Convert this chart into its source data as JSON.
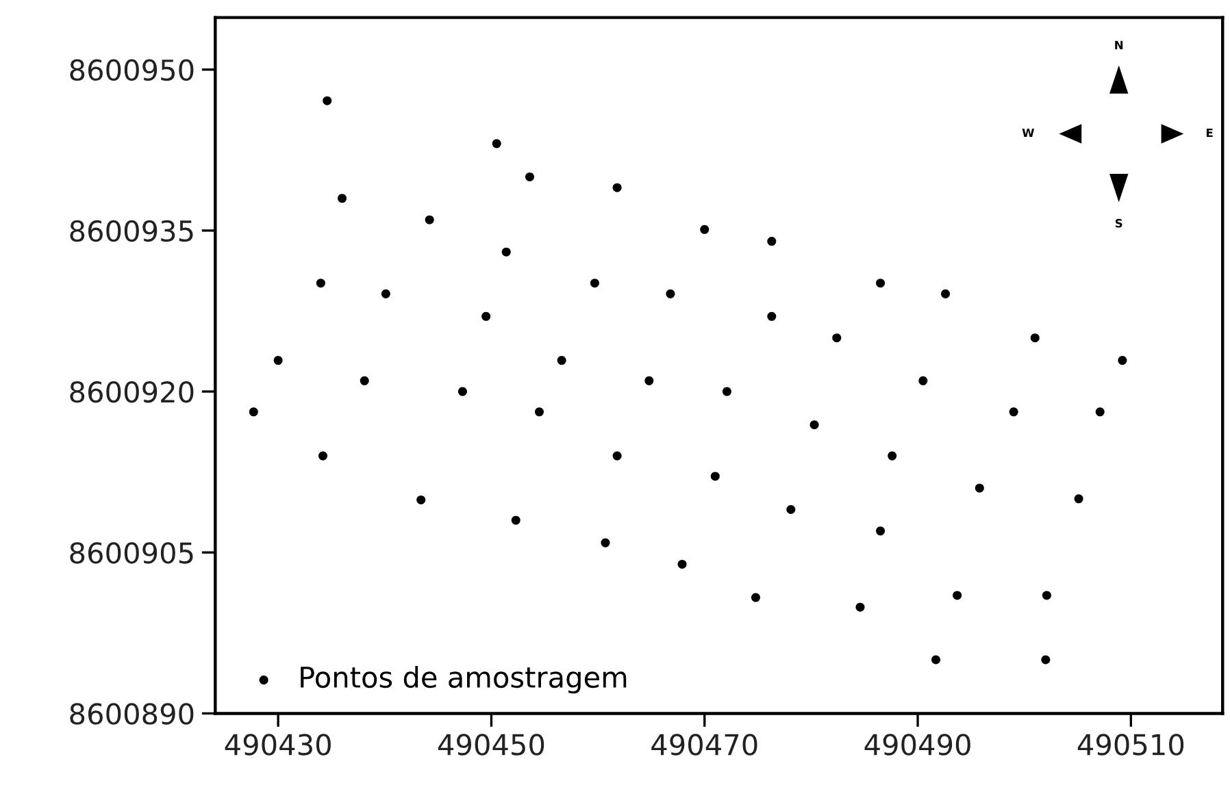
{
  "chart_data": {
    "type": "scatter",
    "xlim": [
      490424.1,
      490518.6
    ],
    "ylim": [
      8600890,
      8600954.85
    ],
    "xticks": [
      490430,
      490450,
      490470,
      490490,
      490510
    ],
    "yticks": [
      8600890,
      8600905,
      8600920,
      8600935,
      8600950
    ],
    "legend": "bottom left",
    "marker": "circle",
    "grid": false,
    "annotations": [
      "N",
      "W",
      "E",
      "S"
    ],
    "series": [
      {
        "name": "Pontos de amostragem",
        "color": "#000000",
        "x": [
          490427.7,
          490430.0,
          490434.2,
          490434.6,
          490434.0,
          490436.0,
          490438.1,
          490440.1,
          490443.4,
          490444.2,
          490447.3,
          490449.5,
          490450.5,
          490451.4,
          490452.3,
          490453.6,
          490454.5,
          490456.6,
          490459.7,
          490460.7,
          490461.8,
          490461.8,
          490464.8,
          490466.8,
          490467.9,
          490470.0,
          490471.0,
          490472.1,
          490474.8,
          490476.3,
          490476.3,
          490478.1,
          490480.3,
          490482.4,
          490484.6,
          490486.5,
          490486.5,
          490487.6,
          490490.5,
          490491.7,
          490492.6,
          490493.7,
          490495.8,
          490499.0,
          490501.0,
          490502.0,
          490502.1,
          490505.1,
          490507.1,
          490509.2
        ],
        "values": [
          8600918.1,
          8600922.9,
          8600914.0,
          8600947.1,
          8600930.1,
          8600938.0,
          8600921.0,
          8600929.1,
          8600909.9,
          8600936.0,
          8600920.0,
          8600927.0,
          8600943.1,
          8600933.0,
          8600908.0,
          8600940.0,
          8600918.1,
          8600922.9,
          8600930.1,
          8600905.9,
          8600939.0,
          8600914.0,
          8600921.0,
          8600929.1,
          8600903.9,
          8600935.1,
          8600912.1,
          8600920.0,
          8600900.8,
          8600934.0,
          8600927.0,
          8600909.0,
          8600916.9,
          8600925.0,
          8600899.9,
          8600930.1,
          8600907.0,
          8600914.0,
          8600921.0,
          8600895.0,
          8600929.1,
          8600901.0,
          8600911.0,
          8600918.1,
          8600925.0,
          8600895.0,
          8600901.0,
          8600910.0,
          8600918.1,
          8600922.9
        ]
      }
    ]
  }
}
